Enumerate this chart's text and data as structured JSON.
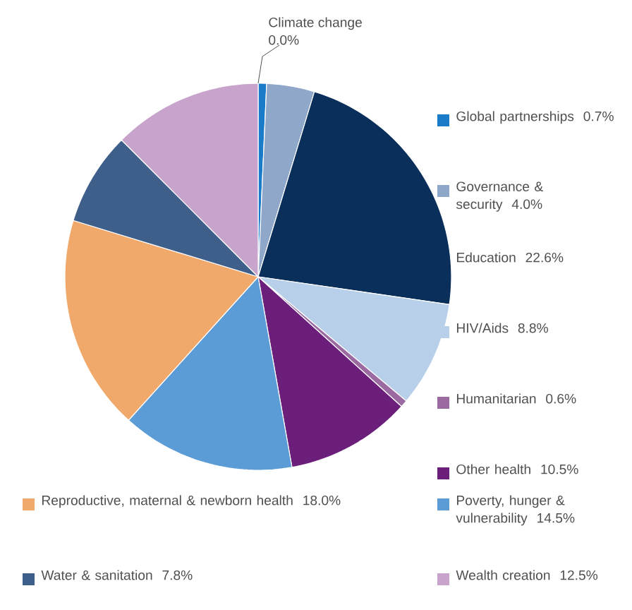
{
  "chart_data": {
    "type": "pie",
    "categories": [
      "Climate change",
      "Global partnerships",
      "Governance & security",
      "Education",
      "HIV/Aids",
      "Humanitarian",
      "Other health",
      "Poverty, hunger & vulnerability",
      "Reproductive, maternal & newborn health",
      "Water & sanitation",
      "Wealth creation"
    ],
    "values": [
      0.0,
      0.7,
      4.0,
      22.6,
      8.8,
      0.6,
      10.5,
      14.5,
      18.0,
      7.8,
      12.5
    ],
    "value_labels": [
      "0.0%",
      "0.7%",
      "4.0%",
      "22.6%",
      "8.8%",
      "0.6%",
      "10.5%",
      "14.5%",
      "18.0%",
      "7.8%",
      "12.5%"
    ],
    "colors": [
      "#1a7cc8",
      "#1a7cc8",
      "#8fa7c9",
      "#0b2f5b",
      "#b8cfea",
      "#9a6aa0",
      "#6b1f7b",
      "#5b9bd6",
      "#f0a96a",
      "#3f5f8b",
      "#c8a4cd"
    ],
    "legend": "right"
  }
}
